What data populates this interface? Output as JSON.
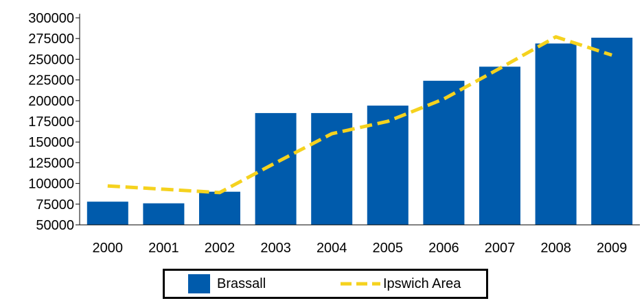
{
  "chart_data": {
    "type": "bar",
    "categories": [
      "2000",
      "2001",
      "2002",
      "2003",
      "2004",
      "2005",
      "2006",
      "2007",
      "2008",
      "2009"
    ],
    "series": [
      {
        "name": "Brassall",
        "kind": "bar",
        "values": [
          78000,
          76000,
          90000,
          185000,
          185000,
          194000,
          224000,
          241000,
          269000,
          276000
        ]
      },
      {
        "name": "Ipswich Area",
        "kind": "line",
        "style": "dashed",
        "values": [
          97000,
          93000,
          89000,
          125000,
          160000,
          175000,
          202000,
          239000,
          277000,
          255000
        ]
      }
    ],
    "y_ticks": [
      "300000",
      "275000",
      "250000",
      "225000",
      "200000",
      "175000",
      "150000",
      "125000",
      "100000",
      "75000",
      "50000"
    ],
    "ylim": [
      50000,
      300000
    ],
    "grid": false,
    "legend_position": "bottom",
    "title": "",
    "xlabel": "",
    "ylabel": ""
  },
  "colors": {
    "bar": "#005bac",
    "line": "#f5d21e",
    "axis": "#000000"
  }
}
